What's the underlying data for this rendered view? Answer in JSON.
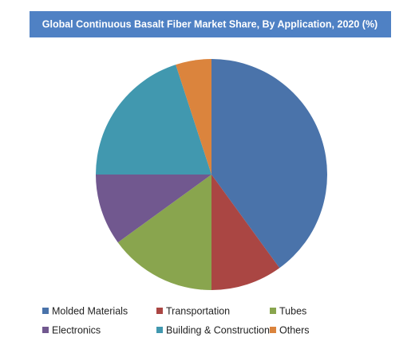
{
  "chart_data": {
    "type": "pie",
    "title": "Global Continuous Basalt Fiber Market Share, By Application, 2020 (%)",
    "categories": [
      "Molded Materials",
      "Transportation",
      "Tubes",
      "Electronics",
      "Building & Construction",
      "Others"
    ],
    "values": [
      40,
      10,
      15,
      10,
      20,
      5
    ],
    "colors": [
      "#4a73aa",
      "#aa4643",
      "#89a54e",
      "#71588f",
      "#4198af",
      "#db843d"
    ],
    "legend": "bottom"
  }
}
